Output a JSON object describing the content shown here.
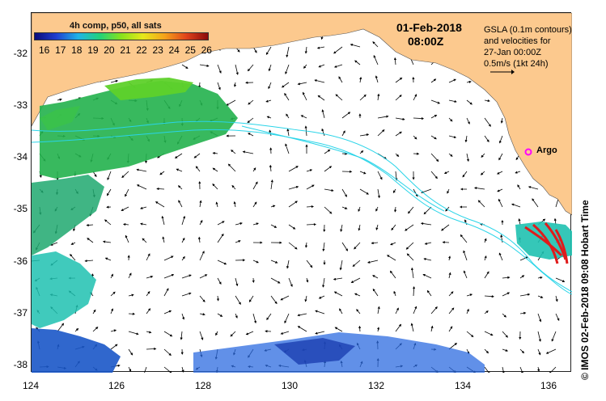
{
  "colorbar": {
    "title": "4h comp, p50, all sats",
    "ticks": [
      "16",
      "17",
      "18",
      "19",
      "20",
      "21",
      "22",
      "23",
      "24",
      "25",
      "26"
    ]
  },
  "header": {
    "date": "01-Feb-2018",
    "time": "08:00Z"
  },
  "legend": {
    "lines": [
      "GSLA (0.1m contours)",
      "and velocities for",
      "27-Jan 00:00Z",
      "0.5m/s (1kt 24h)"
    ]
  },
  "marker": {
    "label": "Argo",
    "lon": 135.5,
    "lat": -34.0,
    "color": "#ff00ff"
  },
  "axes": {
    "y_ticks": [
      "-32",
      "-33",
      "-34",
      "-35",
      "-36",
      "-37",
      "-38"
    ],
    "x_ticks": [
      "124",
      "126",
      "128",
      "130",
      "132",
      "134",
      "136"
    ],
    "lon_range": [
      124,
      136.5
    ],
    "lat_range": [
      -38.1,
      -31.2
    ]
  },
  "colors": {
    "land": "#fcc98e",
    "contour": "#29d4e8",
    "sst_warm": "#e01b1b"
  },
  "credit": "© IMOS 02-Feb-2018 09:08 Hobart Time"
}
